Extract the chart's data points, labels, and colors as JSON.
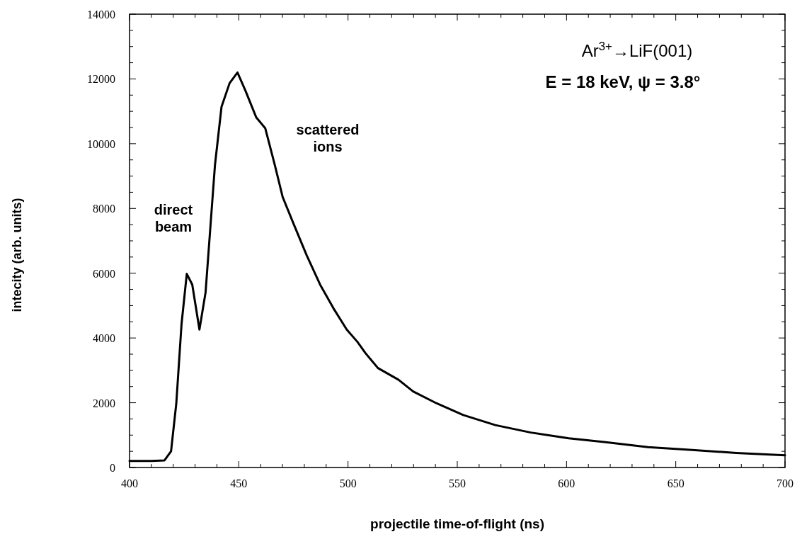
{
  "chart_data": {
    "type": "line",
    "xlabel": "projectile time-of-flight (ns)",
    "ylabel": "intecity (arb. units)",
    "annotations": [
      "direct beam",
      "scattered ions",
      "Ar$^{3+}$→LiF(001)",
      "E = 18 keV, ψ = 3.8°"
    ],
    "xlim": [
      400,
      700
    ],
    "ylim": [
      0,
      14000
    ],
    "xticks": [
      400,
      {
        "value": 410,
        "label": null
      },
      {
        "value": 420,
        "label": null
      },
      {
        "value": 430,
        "label": null
      },
      {
        "value": 440,
        "label": null
      },
      450,
      {
        "value": 460,
        "label": null
      },
      {
        "value": 470,
        "label": null
      },
      {
        "value": 480,
        "label": null
      },
      {
        "value": 490,
        "label": null
      },
      500,
      {
        "value": 510,
        "label": null
      },
      {
        "value": 520,
        "label": null
      },
      {
        "value": 530,
        "label": null
      },
      {
        "value": 540,
        "label": null
      },
      550,
      {
        "value": 560,
        "label": null
      },
      {
        "value": 570,
        "label": null
      },
      {
        "value": 580,
        "label": null
      },
      {
        "value": 590,
        "label": null
      },
      600,
      {
        "value": 610,
        "label": null
      },
      {
        "value": 620,
        "label": null
      },
      {
        "value": 630,
        "label": null
      },
      {
        "value": 640,
        "label": null
      },
      650,
      {
        "value": 660,
        "label": null
      },
      {
        "value": 670,
        "label": null
      },
      {
        "value": 680,
        "label": null
      },
      {
        "value": 690,
        "label": null
      },
      700
    ],
    "yticks": [
      0,
      {
        "value": 500,
        "label": null
      },
      {
        "value": 1000,
        "label": null
      },
      {
        "value": 1500,
        "label": null
      },
      2000,
      {
        "value": 2500,
        "label": null
      },
      {
        "value": 3000,
        "label": null
      },
      {
        "value": 3500,
        "label": null
      },
      4000,
      {
        "value": 4500,
        "label": null
      },
      {
        "value": 5000,
        "label": null
      },
      {
        "value": 5500,
        "label": null
      },
      6000,
      {
        "value": 6500,
        "label": null
      },
      {
        "value": 7000,
        "label": null
      },
      {
        "value": 7500,
        "label": null
      },
      8000,
      {
        "value": 8500,
        "label": null
      },
      {
        "value": 9000,
        "label": null
      },
      {
        "value": 9500,
        "label": null
      },
      10000,
      {
        "value": 10500,
        "label": null
      },
      {
        "value": 11000,
        "label": null
      },
      {
        "value": 11500,
        "label": null
      },
      12000,
      {
        "value": 12500,
        "label": null
      },
      {
        "value": 13000,
        "label": null
      },
      {
        "value": 13500,
        "label": null
      },
      14000
    ],
    "grid": false,
    "marker": "none",
    "line_style": "solid",
    "series": [
      {
        "color": "#000000",
        "x": [
          400,
          410,
          416,
          419,
          421.4,
          423.8,
          426.2,
          428.7,
          432,
          434.8,
          437.3,
          439.1,
          442.1,
          445.8,
          449.4,
          453.1,
          458,
          462.1,
          466.5,
          470.1,
          475,
          481.1,
          487.2,
          493.3,
          499.4,
          504.3,
          508,
          513.7,
          523.1,
          529.8,
          540.6,
          552.7,
          567.4,
          583.6,
          601,
          617.2,
          637.3,
          657.5,
          677.7,
          700
        ],
        "values": [
          200,
          200,
          220,
          500,
          1980,
          4430,
          5980,
          5650,
          4260,
          5410,
          7700,
          9340,
          11140,
          11870,
          12200,
          11630,
          10810,
          10480,
          9340,
          8350,
          7540,
          6550,
          5650,
          4920,
          4260,
          3880,
          3530,
          3070,
          2710,
          2350,
          1980,
          1620,
          1310,
          1080,
          900,
          790,
          630,
          540,
          450,
          380
        ]
      }
    ]
  }
}
